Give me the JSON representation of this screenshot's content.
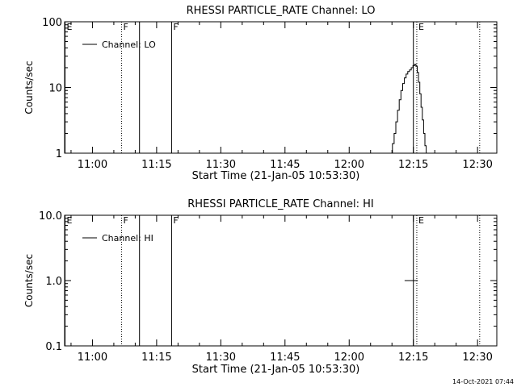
{
  "footer_timestamp": "14-Oct-2021 07:44",
  "chart_data": [
    {
      "type": "line",
      "title": "RHESSI PARTICLE_RATE Channel: LO",
      "xlabel": "Start Time (21-Jan-05 10:53:30)",
      "ylabel": "Counts/sec",
      "y_scale": "log",
      "x_unit": "minutes since 10:53:30",
      "xlim": [
        0,
        101
      ],
      "ylim": [
        1,
        100
      ],
      "x_ticks": [
        {
          "value": 6.5,
          "label": "11:00"
        },
        {
          "value": 21.5,
          "label": "11:15"
        },
        {
          "value": 36.5,
          "label": "11:30"
        },
        {
          "value": 51.5,
          "label": "11:45"
        },
        {
          "value": 66.5,
          "label": "12:00"
        },
        {
          "value": 81.5,
          "label": "12:15"
        },
        {
          "value": 96.5,
          "label": "12:30"
        }
      ],
      "y_ticks": [
        {
          "value": 1,
          "label": "1"
        },
        {
          "value": 10,
          "label": "10"
        },
        {
          "value": 100,
          "label": "100"
        }
      ],
      "grid": false,
      "legend": {
        "position": "top-left",
        "entries": [
          "Channel: LO"
        ]
      },
      "markers": [
        {
          "x": 0.1,
          "label": "E",
          "style": "solid"
        },
        {
          "x": 13.3,
          "label": "F",
          "style": "dotted"
        },
        {
          "x": 17.5,
          "label": "",
          "style": "solid"
        },
        {
          "x": 25.0,
          "label": "F",
          "style": "solid"
        },
        {
          "x": 81.5,
          "label": "",
          "style": "solid"
        },
        {
          "x": 82.3,
          "label": "E",
          "style": "dotted"
        },
        {
          "x": 97.0,
          "label": "",
          "style": "dotted"
        }
      ],
      "series": [
        {
          "name": "Channel: LO",
          "points": [
            [
              76.2,
              1
            ],
            [
              76.6,
              1.4
            ],
            [
              77.0,
              2.0
            ],
            [
              77.4,
              3.0
            ],
            [
              77.8,
              4.5
            ],
            [
              78.2,
              6.5
            ],
            [
              78.6,
              9.0
            ],
            [
              79.0,
              11.5
            ],
            [
              79.4,
              14
            ],
            [
              79.8,
              16
            ],
            [
              80.2,
              17.5
            ],
            [
              80.6,
              18.5
            ],
            [
              81.0,
              20
            ],
            [
              81.4,
              21.5
            ],
            [
              81.8,
              22.5
            ],
            [
              82.1,
              21
            ],
            [
              82.4,
              17
            ],
            [
              82.7,
              12
            ],
            [
              83.0,
              8
            ],
            [
              83.3,
              5
            ],
            [
              83.6,
              3.2
            ],
            [
              83.9,
              2.0
            ],
            [
              84.2,
              1.3
            ],
            [
              84.5,
              1
            ]
          ]
        }
      ]
    },
    {
      "type": "line",
      "title": "RHESSI PARTICLE_RATE Channel: HI",
      "xlabel": "Start Time (21-Jan-05 10:53:30)",
      "ylabel": "Counts/sec",
      "y_scale": "log",
      "x_unit": "minutes since 10:53:30",
      "xlim": [
        0,
        101
      ],
      "ylim": [
        0.1,
        10
      ],
      "x_ticks": [
        {
          "value": 6.5,
          "label": "11:00"
        },
        {
          "value": 21.5,
          "label": "11:15"
        },
        {
          "value": 36.5,
          "label": "11:30"
        },
        {
          "value": 51.5,
          "label": "11:45"
        },
        {
          "value": 66.5,
          "label": "12:00"
        },
        {
          "value": 81.5,
          "label": "12:15"
        },
        {
          "value": 96.5,
          "label": "12:30"
        }
      ],
      "y_ticks": [
        {
          "value": 0.1,
          "label": "0.1"
        },
        {
          "value": 1,
          "label": "1.0"
        },
        {
          "value": 10,
          "label": "10.0"
        }
      ],
      "grid": false,
      "legend": {
        "position": "top-left",
        "entries": [
          "Channel: HI"
        ]
      },
      "markers": [
        {
          "x": 0.1,
          "label": "E",
          "style": "solid"
        },
        {
          "x": 13.3,
          "label": "F",
          "style": "dotted"
        },
        {
          "x": 17.5,
          "label": "",
          "style": "solid"
        },
        {
          "x": 25.0,
          "label": "F",
          "style": "solid"
        },
        {
          "x": 81.5,
          "label": "",
          "style": "solid"
        },
        {
          "x": 82.3,
          "label": "E",
          "style": "dotted"
        },
        {
          "x": 97.0,
          "label": "",
          "style": "dotted"
        }
      ],
      "series": [
        {
          "name": "Channel: HI",
          "points": [
            [
              79.5,
              1.0
            ],
            [
              82.5,
              1.0
            ]
          ]
        }
      ]
    }
  ]
}
